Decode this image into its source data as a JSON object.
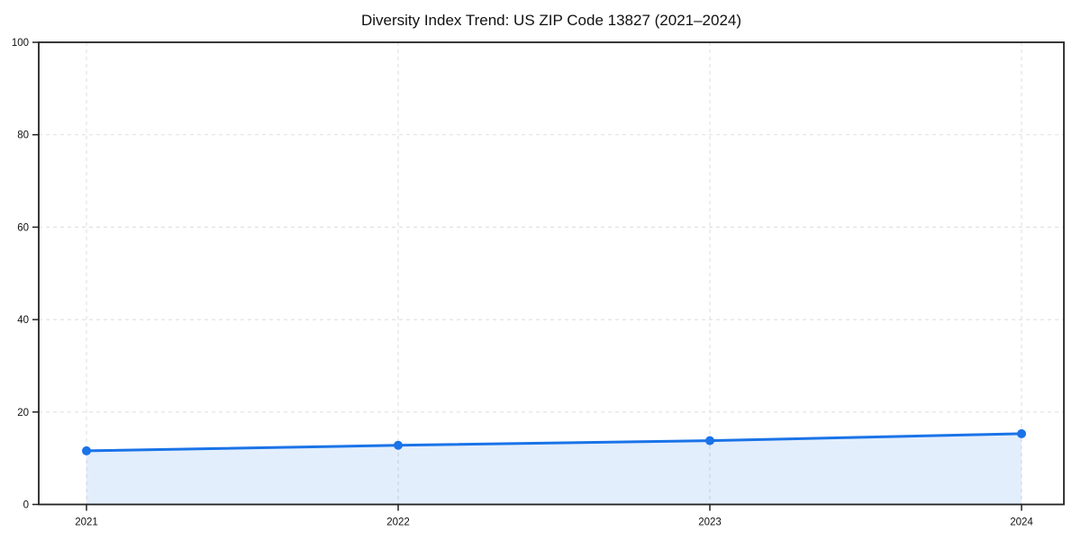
{
  "chart_data": {
    "type": "area",
    "title": "Diversity Index Trend: US ZIP Code 13827 (2021–2024)",
    "series_name": "Diversity Index",
    "categories": [
      "2021",
      "2022",
      "2023",
      "2024"
    ],
    "values": [
      11.6,
      12.8,
      13.8,
      15.3
    ],
    "xlabel": "",
    "ylabel": "",
    "ylim": [
      0,
      100
    ],
    "yticks": [
      0,
      20,
      40,
      60,
      80,
      100
    ],
    "grid": "both",
    "grid_style": "dashed",
    "legend": "none",
    "marker": "circle",
    "colors": {
      "line": "#1a73e8",
      "marker": "#1a73e8",
      "fill": "rgba(26,115,232,0.12)",
      "grid": "#e2e2e2",
      "axis": "#222222",
      "text": "#111111",
      "background": "#ffffff"
    }
  }
}
